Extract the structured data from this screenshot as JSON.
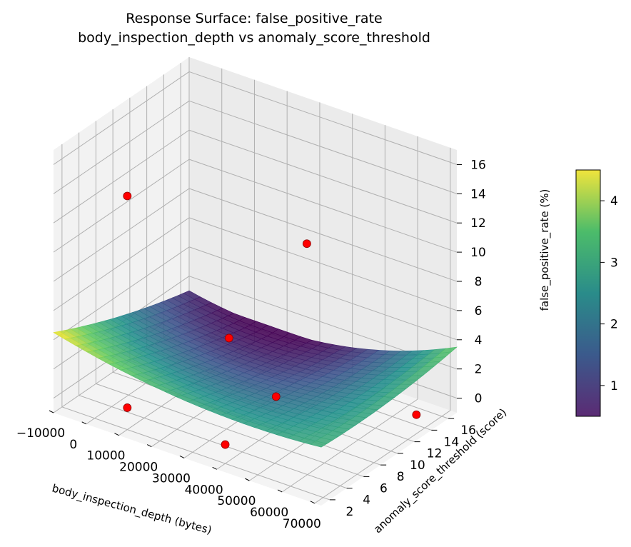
{
  "chart_data": {
    "type": "surface3d",
    "title": "Response Surface: false_positive_rate",
    "subtitle": "body_inspection_depth vs anomaly_score_threshold",
    "xlabel": "body_inspection_depth (bytes)",
    "ylabel": "anomaly_score_threshold (score)",
    "zlabel": "false_positive_rate (%)",
    "xlim": [
      -10000,
      72000
    ],
    "ylim": [
      1,
      17
    ],
    "zlim": [
      -1,
      17
    ],
    "xticks": [
      -10000,
      0,
      10000,
      20000,
      30000,
      40000,
      50000,
      60000,
      70000
    ],
    "yticks": [
      2,
      4,
      6,
      8,
      10,
      12,
      14,
      16
    ],
    "zticks": [
      0,
      2,
      4,
      6,
      8,
      10,
      12,
      14,
      16
    ],
    "colormap": "viridis",
    "colorbar": {
      "ticks": [
        1,
        2,
        3,
        4
      ],
      "range": [
        0.5,
        4.5
      ]
    },
    "surface": {
      "x_range": [
        -10000,
        72000
      ],
      "y_range": [
        1,
        17
      ],
      "corners": {
        "x_min_y_min": 4.5,
        "x_max_y_min": 3.0,
        "x_min_y_max": 1.0,
        "x_max_y_max": 3.5
      },
      "minimum": 0.5
    },
    "points": [
      {
        "x": 10000,
        "y": 2,
        "z": 0.5
      },
      {
        "x": 10000,
        "y": 14,
        "z": 0.5
      },
      {
        "x": 10000,
        "y": 2,
        "z": 15
      },
      {
        "x": 70000,
        "y": 13,
        "z": 0.3
      },
      {
        "x": 65000,
        "y": 2,
        "z": 16
      },
      {
        "x": 40000,
        "y": 8,
        "z": 1.2
      },
      {
        "x": 40000,
        "y": 2,
        "z": 0.3
      }
    ],
    "colors": {
      "point": "#ff0000",
      "point_edge": "#8b0000",
      "pane_fill": "#f2f2f2",
      "grid": "#b0b0b0"
    }
  }
}
